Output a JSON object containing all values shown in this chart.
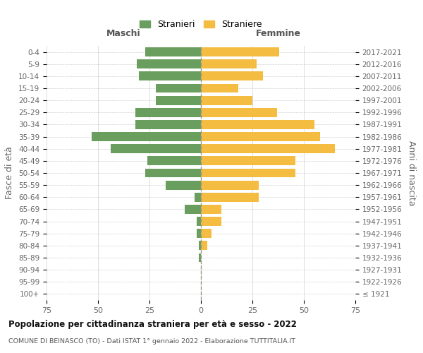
{
  "age_groups": [
    "0-4",
    "5-9",
    "10-14",
    "15-19",
    "20-24",
    "25-29",
    "30-34",
    "35-39",
    "40-44",
    "45-49",
    "50-54",
    "55-59",
    "60-64",
    "65-69",
    "70-74",
    "75-79",
    "80-84",
    "85-89",
    "90-94",
    "95-99",
    "100+"
  ],
  "birth_years": [
    "2017-2021",
    "2012-2016",
    "2007-2011",
    "2002-2006",
    "1997-2001",
    "1992-1996",
    "1987-1991",
    "1982-1986",
    "1977-1981",
    "1972-1976",
    "1967-1971",
    "1962-1966",
    "1957-1961",
    "1952-1956",
    "1947-1951",
    "1942-1946",
    "1937-1941",
    "1932-1936",
    "1927-1931",
    "1922-1926",
    "≤ 1921"
  ],
  "maschi": [
    27,
    31,
    30,
    22,
    22,
    32,
    32,
    53,
    44,
    26,
    27,
    17,
    3,
    8,
    2,
    2,
    1,
    1,
    0,
    0,
    0
  ],
  "femmine": [
    38,
    27,
    30,
    18,
    25,
    37,
    55,
    58,
    65,
    46,
    46,
    28,
    28,
    10,
    10,
    5,
    3,
    0,
    0,
    0,
    0
  ],
  "color_maschi": "#6a9e5e",
  "color_femmine": "#f5bc42",
  "title": "Popolazione per cittadinanza straniera per età e sesso - 2022",
  "subtitle": "COMUNE DI BEINASCO (TO) - Dati ISTAT 1° gennaio 2022 - Elaborazione TUTTITALIA.IT",
  "header_maschi": "Maschi",
  "header_femmine": "Femmine",
  "ylabel_left": "Fasce di età",
  "ylabel_right": "Anni di nascita",
  "legend_maschi": "Stranieri",
  "legend_femmine": "Straniere",
  "xlim": 75,
  "background_color": "#ffffff",
  "grid_color": "#d0d0d0"
}
